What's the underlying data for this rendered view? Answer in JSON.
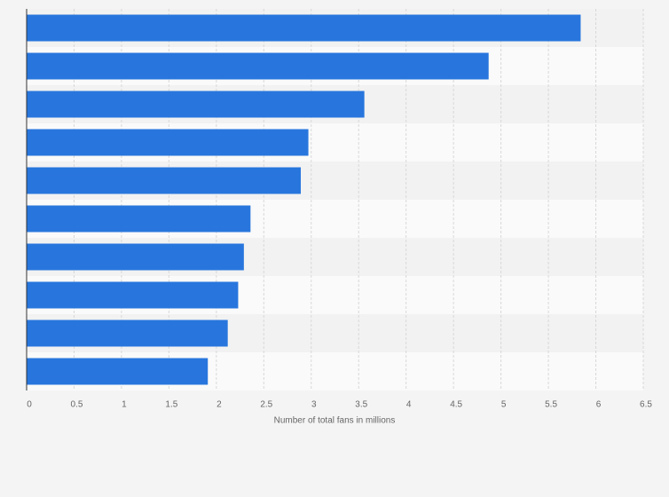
{
  "chart_data": {
    "type": "hbar",
    "x_axis_label": "Number of total fans in millions",
    "categories": [
      null,
      null,
      null,
      null,
      null,
      null,
      null,
      null,
      null,
      null
    ],
    "values": [
      5.84,
      4.87,
      3.56,
      2.97,
      2.89,
      2.36,
      2.29,
      2.23,
      2.12,
      1.91
    ],
    "color": "#2876dd",
    "xlim": [
      0,
      6.5
    ],
    "xticks": [
      0,
      0.5,
      1,
      1.5,
      2,
      2.5,
      3,
      3.5,
      4,
      4.5,
      5,
      5.5,
      6,
      6.5
    ],
    "grid": true
  }
}
